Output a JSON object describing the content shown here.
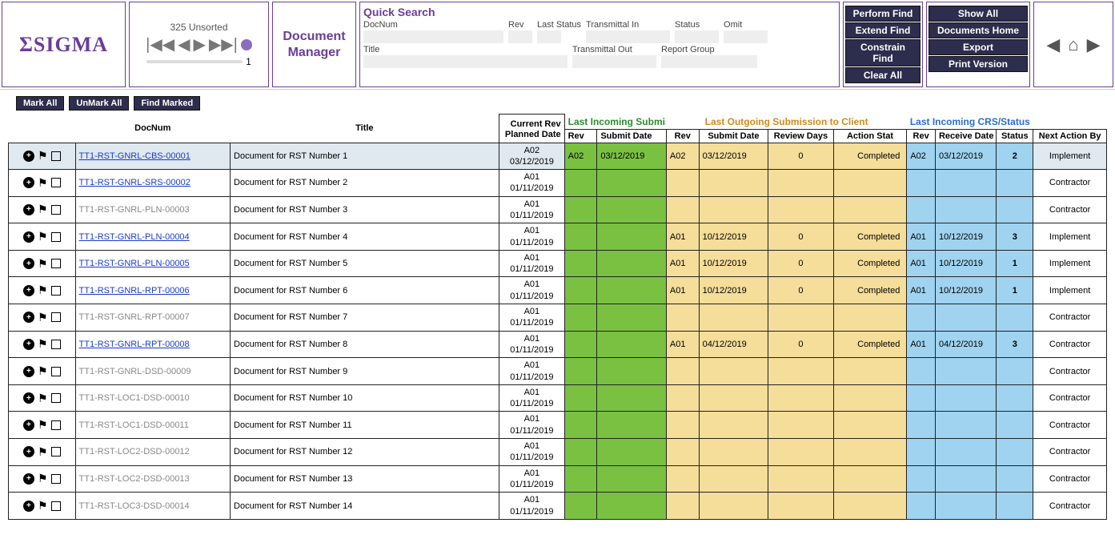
{
  "header": {
    "logo": "ΣSIGMA",
    "unsorted": "325 Unsorted",
    "slider_value": "1",
    "title_line1": "Document",
    "title_line2": "Manager",
    "quick_search": "Quick Search",
    "fields": {
      "docnum": "DocNum",
      "rev": "Rev",
      "last_status": "Last Status",
      "transmittal_in": "Transmittal In",
      "status": "Status",
      "omit": "Omit",
      "title": "Title",
      "transmittal_out": "Transmittal Out",
      "report_group": "Report Group"
    },
    "buttons1": [
      "Perform Find",
      "Extend Find",
      "Constrain Find",
      "Clear All"
    ],
    "buttons2": [
      "Show All",
      "Documents Home",
      "Export",
      "Print Version"
    ]
  },
  "toolbar": [
    "Mark All",
    "UnMark All",
    "Find Marked"
  ],
  "columns": {
    "docnum": "DocNum",
    "title": "Title",
    "current_rev": "Current Rev\nPlanned Date",
    "group_in": "Last Incoming Submission",
    "group_out": "Last Outgoing Submission to Client",
    "group_crs": "Last Incoming CRS/Status",
    "rev": "Rev",
    "submit": "Submit Date",
    "review": "Review Days",
    "action_stat": "Action Stat",
    "receive": "Receive Date",
    "status": "Status",
    "next": "Next Action By"
  },
  "rows": [
    {
      "docnum": "TT1-RST-GNRL-CBS-00001",
      "link": true,
      "hl": true,
      "title": "Document for RST Number 1",
      "rev": "A02",
      "date": "03/12/2019",
      "in_rev": "A02",
      "in_date": "03/12/2019",
      "out_rev": "A02",
      "out_date": "03/12/2019",
      "days": "0",
      "stat": "Completed",
      "crs_rev": "A02",
      "crs_date": "03/12/2019",
      "crs_stat": "2",
      "next": "Implement"
    },
    {
      "docnum": "TT1-RST-GNRL-SRS-00002",
      "link": true,
      "title": "Document for RST Number 2",
      "rev": "A01",
      "date": "01/11/2019",
      "next": "Contractor"
    },
    {
      "docnum": "TT1-RST-GNRL-PLN-00003",
      "link": false,
      "title": "Document for RST Number 3",
      "rev": "A01",
      "date": "01/11/2019",
      "next": "Contractor"
    },
    {
      "docnum": "TT1-RST-GNRL-PLN-00004",
      "link": true,
      "title": "Document for RST Number 4",
      "rev": "A01",
      "date": "01/11/2019",
      "out_rev": "A01",
      "out_date": "10/12/2019",
      "days": "0",
      "stat": "Completed",
      "crs_rev": "A01",
      "crs_date": "10/12/2019",
      "crs_stat": "3",
      "next": "Implement"
    },
    {
      "docnum": "TT1-RST-GNRL-PLN-00005",
      "link": true,
      "title": "Document for RST Number 5",
      "rev": "A01",
      "date": "01/11/2019",
      "out_rev": "A01",
      "out_date": "10/12/2019",
      "days": "0",
      "stat": "Completed",
      "crs_rev": "A01",
      "crs_date": "10/12/2019",
      "crs_stat": "1",
      "next": "Implement"
    },
    {
      "docnum": "TT1-RST-GNRL-RPT-00006",
      "link": true,
      "title": "Document for RST Number 6",
      "rev": "A01",
      "date": "01/11/2019",
      "out_rev": "A01",
      "out_date": "10/12/2019",
      "days": "0",
      "stat": "Completed",
      "crs_rev": "A01",
      "crs_date": "10/12/2019",
      "crs_stat": "1",
      "next": "Implement"
    },
    {
      "docnum": "TT1-RST-GNRL-RPT-00007",
      "link": false,
      "title": "Document for RST Number 7",
      "rev": "A01",
      "date": "01/11/2019",
      "next": "Contractor"
    },
    {
      "docnum": "TT1-RST-GNRL-RPT-00008",
      "link": true,
      "title": "Document for RST Number 8",
      "rev": "A01",
      "date": "01/11/2019",
      "out_rev": "A01",
      "out_date": "04/12/2019",
      "days": "0",
      "stat": "Completed",
      "crs_rev": "A01",
      "crs_date": "04/12/2019",
      "crs_stat": "3",
      "next": "Contractor"
    },
    {
      "docnum": "TT1-RST-GNRL-DSD-00009",
      "link": false,
      "title": "Document for RST Number 9",
      "rev": "A01",
      "date": "01/11/2019",
      "next": "Contractor"
    },
    {
      "docnum": "TT1-RST-LOC1-DSD-00010",
      "link": false,
      "title": "Document for RST Number 10",
      "rev": "A01",
      "date": "01/11/2019",
      "next": "Contractor"
    },
    {
      "docnum": "TT1-RST-LOC1-DSD-00011",
      "link": false,
      "title": "Document for RST Number 11",
      "rev": "A01",
      "date": "01/11/2019",
      "next": "Contractor"
    },
    {
      "docnum": "TT1-RST-LOC2-DSD-00012",
      "link": false,
      "title": "Document for RST Number 12",
      "rev": "A01",
      "date": "01/11/2019",
      "next": "Contractor"
    },
    {
      "docnum": "TT1-RST-LOC2-DSD-00013",
      "link": false,
      "title": "Document for RST Number 13",
      "rev": "A01",
      "date": "01/11/2019",
      "next": "Contractor"
    },
    {
      "docnum": "TT1-RST-LOC3-DSD-00014",
      "link": false,
      "title": "Document for RST Number 14",
      "rev": "A01",
      "date": "01/11/2019",
      "next": "Contractor"
    }
  ]
}
